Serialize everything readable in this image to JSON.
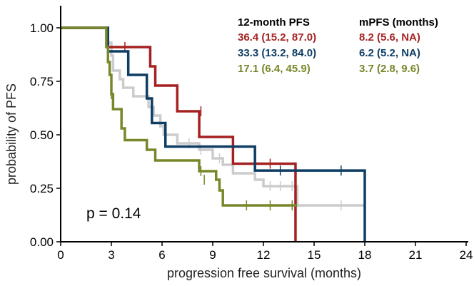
{
  "chart_data": {
    "type": "line",
    "subtype": "kaplan-meier survival curve",
    "xlabel": "progression free survival (months)",
    "ylabel": "probability of PFS",
    "xlim": [
      0,
      24
    ],
    "ylim": [
      0,
      1
    ],
    "x_ticks": [
      "0",
      "3",
      "6",
      "9",
      "12",
      "15",
      "18",
      "21",
      "24"
    ],
    "y_ticks": [
      "0.00",
      "0.25",
      "0.50",
      "0.75",
      "1.00"
    ],
    "grid": false,
    "annotation": "p = 0.14",
    "table": {
      "headers": [
        "12-month PFS",
        "mPFS (months)"
      ],
      "rows": [
        {
          "pfs12": "36.4 (15.2, 87.0)",
          "mpfs": "8.2 (5.6, NA)",
          "color": "#A52121"
        },
        {
          "pfs12": "33.3 (13.2, 84.0)",
          "mpfs": "6.2 (5.2, NA)",
          "color": "#0E3D63"
        },
        {
          "pfs12": "17.1 (6.4, 45.9)",
          "mpfs": "3.7 (2.8, 9.6)",
          "color": "#76882A"
        }
      ]
    },
    "series": [
      {
        "color": "#CCCCCC",
        "steps": [
          [
            0,
            1.0
          ],
          [
            2.8,
            0.93
          ],
          [
            3.0,
            0.87
          ],
          [
            3.1,
            0.8
          ],
          [
            3.5,
            0.76
          ],
          [
            3.7,
            0.72
          ],
          [
            4.3,
            0.68
          ],
          [
            5.2,
            0.63
          ],
          [
            5.5,
            0.59
          ],
          [
            5.9,
            0.54
          ],
          [
            6.1,
            0.5
          ],
          [
            6.9,
            0.46
          ],
          [
            8.2,
            0.43
          ],
          [
            9.0,
            0.39
          ],
          [
            9.6,
            0.36
          ],
          [
            10.2,
            0.32
          ],
          [
            11.5,
            0.29
          ],
          [
            12.0,
            0.26
          ],
          [
            14.0,
            0.17
          ],
          [
            18.0,
            0.17
          ]
        ],
        "censors": [
          [
            7.6,
            0.46
          ],
          [
            8.3,
            0.43
          ],
          [
            9.4,
            0.39
          ],
          [
            12.4,
            0.26
          ],
          [
            13.0,
            0.26
          ],
          [
            13.7,
            0.26
          ],
          [
            16.6,
            0.17
          ]
        ],
        "end": 18.0
      },
      {
        "color": "#A52121",
        "steps": [
          [
            0,
            1.0
          ],
          [
            2.8,
            0.91
          ],
          [
            5.3,
            0.82
          ],
          [
            5.6,
            0.73
          ],
          [
            6.9,
            0.61
          ],
          [
            8.2,
            0.49
          ],
          [
            10.2,
            0.365
          ],
          [
            13.9,
            0.0
          ]
        ],
        "censors": [
          [
            3.8,
            0.91
          ],
          [
            8.3,
            0.61
          ],
          [
            12.4,
            0.365
          ]
        ],
        "end": 13.9
      },
      {
        "color": "#0E3D63",
        "steps": [
          [
            0,
            1.0
          ],
          [
            2.8,
            0.89
          ],
          [
            4.0,
            0.78
          ],
          [
            5.1,
            0.67
          ],
          [
            5.4,
            0.555
          ],
          [
            6.2,
            0.445
          ],
          [
            11.5,
            0.333
          ],
          [
            18.0,
            0.0
          ]
        ],
        "censors": [
          [
            13.0,
            0.333
          ],
          [
            16.6,
            0.333
          ]
        ],
        "end": 18.0
      },
      {
        "color": "#76882A",
        "steps": [
          [
            0,
            1.0
          ],
          [
            2.7,
            0.91
          ],
          [
            2.8,
            0.84
          ],
          [
            2.9,
            0.78
          ],
          [
            3.0,
            0.69
          ],
          [
            3.1,
            0.62
          ],
          [
            3.6,
            0.53
          ],
          [
            3.8,
            0.475
          ],
          [
            5.1,
            0.43
          ],
          [
            5.6,
            0.38
          ],
          [
            8.2,
            0.33
          ],
          [
            9.2,
            0.29
          ],
          [
            9.4,
            0.24
          ],
          [
            9.6,
            0.17
          ],
          [
            14.0,
            0.17
          ]
        ],
        "censors": [
          [
            3.0,
            0.69
          ],
          [
            8.3,
            0.33
          ],
          [
            8.5,
            0.29
          ],
          [
            11.0,
            0.17
          ],
          [
            12.4,
            0.17
          ],
          [
            13.7,
            0.17
          ]
        ],
        "end": 14.0
      }
    ]
  }
}
